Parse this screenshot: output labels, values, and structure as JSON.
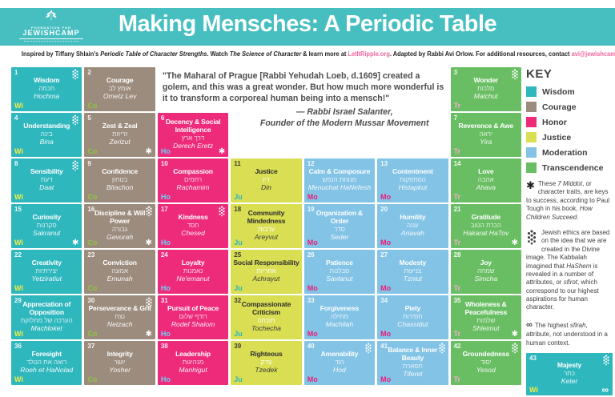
{
  "header": {
    "title": "Making Mensches: A Periodic Table",
    "logo": {
      "top": "FOUNDATION FOR",
      "main": "JEWISHCAMP"
    }
  },
  "subtitle_segments": [
    {
      "t": "Inspired by Tiffany Shlain's "
    },
    {
      "t": "Periodic Table of Character Strengths",
      "s": "i"
    },
    {
      "t": ".  Watch "
    },
    {
      "t": "The Science of Character",
      "s": "i"
    },
    {
      "t": " & learn more at "
    },
    {
      "t": "LetItRipple.org",
      "s": "link"
    },
    {
      "t": ".  Adapted by Rabbi Avi Orlow.  For additional resources, contact "
    },
    {
      "t": "avi@jewishcamp.org",
      "s": "link"
    },
    {
      "t": "."
    }
  ],
  "quote": {
    "text": "\"The Maharal of Prague [Rabbi Yehudah Loeb, d.1609] created a golem, and this was a great wonder. But how much more wonderful is it to transform a corporeal human being into a mensch!\"",
    "attr1": "— Rabbi Israel Salanter,",
    "attr2": "Founder of the Modern Mussar Movement"
  },
  "categories": {
    "Wi": {
      "name": "Wisdom",
      "bg": "#2FB7BE",
      "code_color": "#F9ED3E",
      "dark": false
    },
    "Co": {
      "name": "Courage",
      "bg": "#9C8C7D",
      "code_color": "#8CC63E",
      "dark": false
    },
    "Ho": {
      "name": "Honor",
      "bg": "#EE2A7B",
      "code_color": "#6DCFF6",
      "dark": false
    },
    "Ju": {
      "name": "Justice",
      "bg": "#D9DE52",
      "code_color": "#29B7BE",
      "dark": true
    },
    "Mo": {
      "name": "Moderation",
      "bg": "#82C3E6",
      "code_color": "#EC1E79",
      "dark": false
    },
    "Tr": {
      "name": "Transcendence",
      "bg": "#69BE63",
      "code_color": "#F2AECB",
      "dark": false
    }
  },
  "key": {
    "title": "KEY",
    "entries": [
      {
        "label": "Wisdom",
        "color": "#2FB7BE"
      },
      {
        "label": "Courage",
        "color": "#9C8C7D"
      },
      {
        "label": "Honor",
        "color": "#EE2A7B"
      },
      {
        "label": "Justice",
        "color": "#D9DE52"
      },
      {
        "label": "Moderation",
        "color": "#82C3E6"
      },
      {
        "label": "Transcendence",
        "color": "#69BE63"
      }
    ],
    "star_note_segments": [
      {
        "t": "These "
      },
      {
        "t": "7 Middot",
        "s": "i"
      },
      {
        "t": ", or character traits, are keys to success, according to Paul Tough in his book, "
      },
      {
        "t": "How Children Succeed",
        "s": "i"
      },
      {
        "t": "."
      }
    ],
    "sfirah_note_segments": [
      {
        "t": "Jewish ethics are based on the idea that we are created in the Divine image.  The Kabbalah imagined that "
      },
      {
        "t": "HaShem",
        "s": "i"
      },
      {
        "t": " is revealed in a number of attributes, or "
      },
      {
        "t": "sfirot",
        "s": "i"
      },
      {
        "t": ", which correspond to our highest aspirations for human character."
      }
    ],
    "infinity_note_segments": [
      {
        "t": "The highest "
      },
      {
        "t": "sfirah",
        "s": "i"
      },
      {
        "t": ", attribute, not understood in a human context."
      }
    ]
  },
  "tiles": [
    {
      "n": 1,
      "title": "Wisdom",
      "hebrew": "חכמה",
      "translit": "Hochma",
      "code": "Wi",
      "row": 1,
      "col": 1,
      "sfirah": true,
      "star": false,
      "infinity": false
    },
    {
      "n": 2,
      "title": "Courage",
      "hebrew": "אומץ לב",
      "translit": "Ometz Lev",
      "code": "Co",
      "row": 1,
      "col": 2,
      "sfirah": false,
      "star": false,
      "infinity": false
    },
    {
      "n": 3,
      "title": "Wonder",
      "hebrew": "מלכות",
      "translit": "Malchut",
      "code": "Tr",
      "row": 1,
      "col": 7,
      "sfirah": true,
      "star": false,
      "infinity": false
    },
    {
      "n": 4,
      "title": "Understanding",
      "hebrew": "בינה",
      "translit": "Bina",
      "code": "Wi",
      "row": 2,
      "col": 1,
      "sfirah": true,
      "star": false,
      "infinity": false
    },
    {
      "n": 5,
      "title": "Zest & Zeal",
      "hebrew": "זריזות",
      "translit": "Zerizut",
      "code": "Co",
      "row": 2,
      "col": 2,
      "sfirah": false,
      "star": true,
      "infinity": false
    },
    {
      "n": 6,
      "title": "Decency & Social Intelligence",
      "hebrew": "דרך ארץ",
      "translit": "Derech Eretz",
      "code": "Ho",
      "row": 2,
      "col": 3,
      "sfirah": false,
      "star": true,
      "infinity": false
    },
    {
      "n": 7,
      "title": "Reverence & Awe",
      "hebrew": "יראה",
      "translit": "Yira",
      "code": "Tr",
      "row": 2,
      "col": 7,
      "sfirah": false,
      "star": false,
      "infinity": false
    },
    {
      "n": 8,
      "title": "Sensibility",
      "hebrew": "דעת",
      "translit": "Daat",
      "code": "Wi",
      "row": 3,
      "col": 1,
      "sfirah": true,
      "star": false,
      "infinity": false
    },
    {
      "n": 9,
      "title": "Confidence",
      "hebrew": "בטחון",
      "translit": "Bitachon",
      "code": "Co",
      "row": 3,
      "col": 2,
      "sfirah": false,
      "star": false,
      "infinity": false
    },
    {
      "n": 10,
      "title": "Compassion",
      "hebrew": "רחמים",
      "translit": "Rachamim",
      "code": "Ho",
      "row": 3,
      "col": 3,
      "sfirah": false,
      "star": false,
      "infinity": false
    },
    {
      "n": 11,
      "title": "Justice",
      "hebrew": "דין",
      "translit": "Din",
      "code": "Ju",
      "row": 3,
      "col": 4,
      "sfirah": false,
      "star": false,
      "infinity": false
    },
    {
      "n": 12,
      "title": "Calm & Composure",
      "hebrew": "מנוחת הנפש",
      "translit": "Menuchat HaNefesh",
      "code": "Mo",
      "row": 3,
      "col": 5,
      "sfirah": false,
      "star": false,
      "infinity": false
    },
    {
      "n": 13,
      "title": "Contentment",
      "hebrew": "הסתפקות",
      "translit": "Histapkut",
      "code": "Mo",
      "row": 3,
      "col": 6,
      "sfirah": false,
      "star": false,
      "infinity": false
    },
    {
      "n": 14,
      "title": "Love",
      "hebrew": "אהבה",
      "translit": "Ahava",
      "code": "Tr",
      "row": 3,
      "col": 7,
      "sfirah": false,
      "star": false,
      "infinity": false
    },
    {
      "n": 15,
      "title": "Curiosity",
      "hebrew": "סקרנות",
      "translit": "Sakranut",
      "code": "Wi",
      "row": 4,
      "col": 1,
      "sfirah": false,
      "star": true,
      "infinity": false
    },
    {
      "n": 16,
      "title": "Discipline & Will Power",
      "hebrew": "גבורה",
      "translit": "Gevurah",
      "code": "Co",
      "row": 4,
      "col": 2,
      "sfirah": true,
      "star": true,
      "infinity": false
    },
    {
      "n": 17,
      "title": "Kindness",
      "hebrew": "חסד",
      "translit": "Chesed",
      "code": "Ho",
      "row": 4,
      "col": 3,
      "sfirah": true,
      "star": false,
      "infinity": false
    },
    {
      "n": 18,
      "title": "Community Mindedness",
      "hebrew": "ערבות",
      "translit": "Areyvut",
      "code": "Ju",
      "row": 4,
      "col": 4,
      "sfirah": false,
      "star": false,
      "infinity": false
    },
    {
      "n": 19,
      "title": "Organization & Order",
      "hebrew": "סדר",
      "translit": "Seder",
      "code": "Mo",
      "row": 4,
      "col": 5,
      "sfirah": false,
      "star": false,
      "infinity": false
    },
    {
      "n": 20,
      "title": "Humility",
      "hebrew": "ענוה",
      "translit": "Anavah",
      "code": "Mo",
      "row": 4,
      "col": 6,
      "sfirah": false,
      "star": false,
      "infinity": false
    },
    {
      "n": 21,
      "title": "Gratitude",
      "hebrew": "הכרת הטוב",
      "translit": "Hakarat HaTov",
      "code": "Tr",
      "row": 4,
      "col": 7,
      "sfirah": false,
      "star": true,
      "infinity": false
    },
    {
      "n": 22,
      "title": "Creativity",
      "hebrew": "יצירתיות",
      "translit": "Yetziratiut",
      "code": "Wi",
      "row": 5,
      "col": 1,
      "sfirah": false,
      "star": false,
      "infinity": false
    },
    {
      "n": 23,
      "title": "Conviction",
      "hebrew": "אמונה",
      "translit": "Emunah",
      "code": "Co",
      "row": 5,
      "col": 2,
      "sfirah": false,
      "star": false,
      "infinity": false
    },
    {
      "n": 24,
      "title": "Loyalty",
      "hebrew": "נאמנות",
      "translit": "Ne'emanut",
      "code": "Ho",
      "row": 5,
      "col": 3,
      "sfirah": false,
      "star": false,
      "infinity": false
    },
    {
      "n": 25,
      "title": "Social Responsibility",
      "hebrew": "אחריות",
      "translit": "Achrayut",
      "code": "Ju",
      "row": 5,
      "col": 4,
      "sfirah": false,
      "star": false,
      "infinity": false
    },
    {
      "n": 26,
      "title": "Patience",
      "hebrew": "סבלנות",
      "translit": "Savlanut",
      "code": "Mo",
      "row": 5,
      "col": 5,
      "sfirah": false,
      "star": false,
      "infinity": false
    },
    {
      "n": 27,
      "title": "Modesty",
      "hebrew": "צניעות",
      "translit": "Tzniut",
      "code": "Mo",
      "row": 5,
      "col": 6,
      "sfirah": false,
      "star": false,
      "infinity": false
    },
    {
      "n": 28,
      "title": "Joy",
      "hebrew": "שמחה",
      "translit": "Simcha",
      "code": "Tr",
      "row": 5,
      "col": 7,
      "sfirah": false,
      "star": false,
      "infinity": false
    },
    {
      "n": 29,
      "title": "Appreciation of Opposition",
      "hebrew": "הערכה של מחלוקת",
      "translit": "Machloket",
      "code": "Wi",
      "row": 6,
      "col": 1,
      "sfirah": false,
      "star": false,
      "infinity": false
    },
    {
      "n": 30,
      "title": "Perseverance & Grit",
      "hebrew": "נצח",
      "translit": "Netzach",
      "code": "Co",
      "row": 6,
      "col": 2,
      "sfirah": true,
      "star": true,
      "infinity": false
    },
    {
      "n": 31,
      "title": "Pursuit of Peace",
      "hebrew": "רודף שלום",
      "translit": "Rodef Shalom",
      "code": "Ho",
      "row": 6,
      "col": 3,
      "sfirah": false,
      "star": false,
      "infinity": false
    },
    {
      "n": 32,
      "title": "Compassionate Criticism",
      "hebrew": "תוכחה",
      "translit": "Tochecha",
      "code": "Ju",
      "row": 6,
      "col": 4,
      "sfirah": false,
      "star": false,
      "infinity": false
    },
    {
      "n": 33,
      "title": "Forgiveness",
      "hebrew": "מחילה",
      "translit": "Machilah",
      "code": "Mo",
      "row": 6,
      "col": 5,
      "sfirah": false,
      "star": false,
      "infinity": false
    },
    {
      "n": 34,
      "title": "Piety",
      "hebrew": "חסידות",
      "translit": "Chassidut",
      "code": "Mo",
      "row": 6,
      "col": 6,
      "sfirah": false,
      "star": false,
      "infinity": false
    },
    {
      "n": 35,
      "title": "Wholeness & Peacefulness",
      "hebrew": "שלמות",
      "translit": "Shleimut",
      "code": "Tr",
      "row": 6,
      "col": 7,
      "sfirah": false,
      "star": true,
      "infinity": false
    },
    {
      "n": 36,
      "title": "Foresight",
      "hebrew": "רואה את הנולד",
      "translit": "Roeh et HaNolad",
      "code": "Wi",
      "row": 7,
      "col": 1,
      "sfirah": false,
      "star": false,
      "infinity": false
    },
    {
      "n": 37,
      "title": "Integrity",
      "hebrew": "יושר",
      "translit": "Yosher",
      "code": "Co",
      "row": 7,
      "col": 2,
      "sfirah": false,
      "star": false,
      "infinity": false
    },
    {
      "n": 38,
      "title": "Leadership",
      "hebrew": "מנהיגות",
      "translit": "Manhigut",
      "code": "Ho",
      "row": 7,
      "col": 3,
      "sfirah": false,
      "star": false,
      "infinity": false
    },
    {
      "n": 39,
      "title": "Righteous",
      "hebrew": "צדק",
      "translit": "Tzedek",
      "code": "Ju",
      "row": 7,
      "col": 4,
      "sfirah": false,
      "star": false,
      "infinity": false
    },
    {
      "n": 40,
      "title": "Amenability",
      "hebrew": "הוד",
      "translit": "Hod",
      "code": "Mo",
      "row": 7,
      "col": 5,
      "sfirah": true,
      "star": false,
      "infinity": false
    },
    {
      "n": 41,
      "title": "Balance & Inner Beauty",
      "hebrew": "תפארת",
      "translit": "Tiferet",
      "code": "Mo",
      "row": 7,
      "col": 6,
      "sfirah": true,
      "star": false,
      "infinity": false
    },
    {
      "n": 42,
      "title": "Groundedness",
      "hebrew": "יסוד",
      "translit": "Yesod",
      "code": "Tr",
      "row": 7,
      "col": 7,
      "sfirah": true,
      "star": false,
      "infinity": false
    },
    {
      "n": 43,
      "title": "Majesty",
      "hebrew": "כתר",
      "translit": "Keter",
      "code": "Wi",
      "row": 0,
      "col": 0,
      "sfirah": true,
      "star": false,
      "infinity": true
    }
  ]
}
